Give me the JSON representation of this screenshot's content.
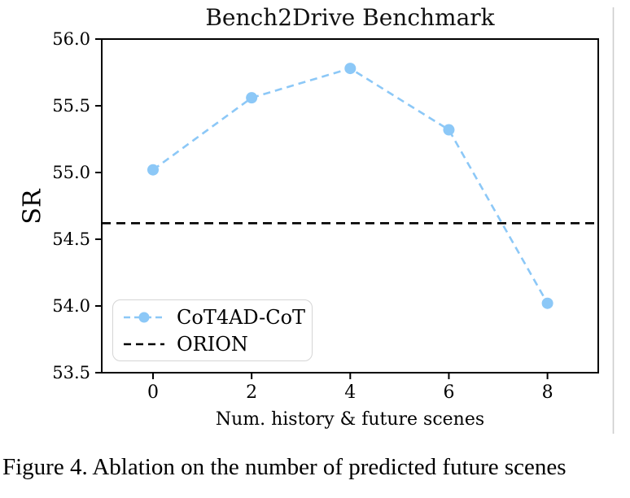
{
  "figure": {
    "caption": "Figure 4. Ablation on the number of predicted future scenes"
  },
  "chart_data": {
    "type": "line",
    "title": "Bench2Drive Benchmark",
    "xlabel": "Num. history &amp; future scenes",
    "xlabel_text": "Num. history & future scenes",
    "ylabel": "SR",
    "x": [
      0,
      2,
      4,
      6,
      8
    ],
    "series": [
      {
        "name": "CoT4AD-CoT",
        "type": "line",
        "style": "dashed",
        "marker": "circle",
        "color": "#8CC8F7",
        "values": [
          55.02,
          55.56,
          55.78,
          55.32,
          54.02
        ]
      },
      {
        "name": "ORION",
        "type": "hline",
        "style": "dashed",
        "color": "#000000",
        "value": 54.62
      }
    ],
    "xlim": [
      -1.04,
      9.03
    ],
    "ylim": [
      53.5,
      56.0
    ],
    "xticks": [
      0,
      2,
      4,
      6,
      8
    ],
    "yticks": [
      53.5,
      54.0,
      54.5,
      55.0,
      55.5,
      56.0
    ],
    "legend_position": "lower left",
    "grid": false,
    "axis_color": "#000000"
  }
}
